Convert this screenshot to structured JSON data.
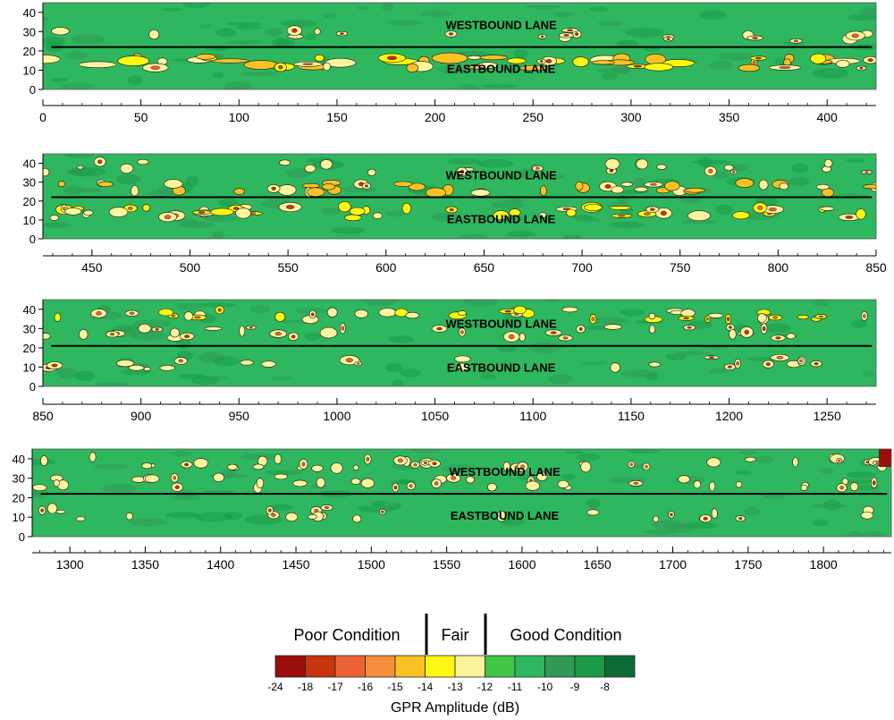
{
  "chart_data": {
    "type": "heatmap",
    "panels": [
      {
        "xlim": [
          0,
          425
        ],
        "xticks": [
          0,
          50,
          100,
          150,
          200,
          250,
          300,
          350,
          400
        ],
        "ylim": [
          0,
          45
        ],
        "yticks": [
          0,
          10,
          20,
          30,
          40
        ],
        "divider_y": 22,
        "labels": {
          "westbound": "WESTBOUND LANE",
          "eastbound": "EASTBOUND LANE"
        }
      },
      {
        "xlim": [
          425,
          850
        ],
        "xticks": [
          450,
          500,
          550,
          600,
          650,
          700,
          750,
          800,
          850
        ],
        "ylim": [
          0,
          45
        ],
        "yticks": [
          0,
          10,
          20,
          30,
          40
        ],
        "divider_y": 22,
        "labels": {
          "westbound": "WESTBOUND LANE",
          "eastbound": "EASTBOUND LANE"
        }
      },
      {
        "xlim": [
          850,
          1275
        ],
        "xticks": [
          850,
          900,
          950,
          1000,
          1050,
          1100,
          1150,
          1200,
          1250
        ],
        "ylim": [
          0,
          45
        ],
        "yticks": [
          0,
          10,
          20,
          30,
          40
        ],
        "divider_y": 21,
        "labels": {
          "westbound": "WESTBOUND LANE",
          "eastbound": "EASTBOUND LANE"
        }
      },
      {
        "xlim": [
          1275,
          1845
        ],
        "xticks": [
          1300,
          1350,
          1400,
          1450,
          1500,
          1550,
          1600,
          1650,
          1700,
          1750,
          1800
        ],
        "ylim": [
          0,
          45
        ],
        "yticks": [
          0,
          10,
          20,
          30,
          40
        ],
        "divider_y": 22,
        "labels": {
          "westbound": "WESTBOUND LANE",
          "eastbound": "EASTBOUND LANE"
        }
      }
    ],
    "colorbar": {
      "title": "GPR Amplitude (dB)",
      "levels": [
        -24,
        -18,
        -17,
        -16,
        -15,
        -14,
        -13,
        -12,
        -11,
        -10,
        -9,
        -8
      ],
      "colors": [
        "#9c0d0d",
        "#c7350e",
        "#ee6336",
        "#f58f3c",
        "#f7c222",
        "#fdf712",
        "#fdf59c",
        "#3fc645",
        "#2fb75f",
        "#2f9a56",
        "#1b9a47",
        "#0f6b35"
      ],
      "conditions": [
        {
          "label": "Poor Condition",
          "from": -24,
          "to": -14
        },
        {
          "label": "Fair",
          "from": -14,
          "to": -12
        },
        {
          "label": "Good Condition",
          "from": -12,
          "to": -8
        }
      ]
    }
  }
}
